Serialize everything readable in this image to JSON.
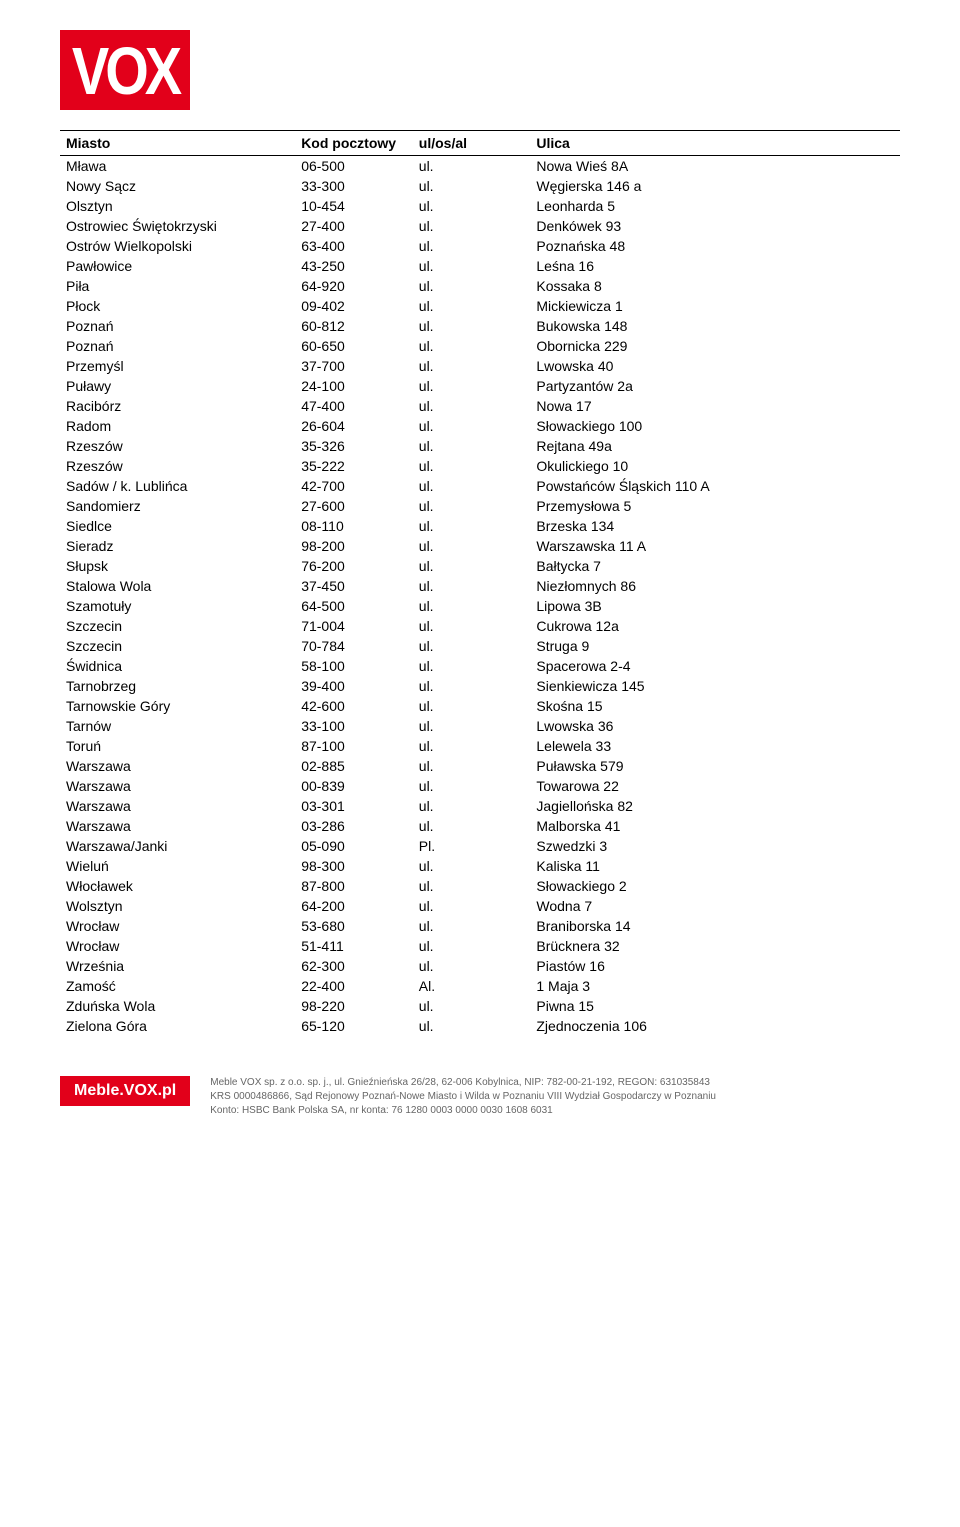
{
  "logo": {
    "text": "VOX"
  },
  "table": {
    "columns": [
      "Miasto",
      "Kod pocztowy",
      "ul/os/al",
      "Ulica"
    ],
    "rows": [
      [
        "Mława",
        "06-500",
        "ul.",
        "Nowa Wieś 8A"
      ],
      [
        "Nowy Sącz",
        "33-300",
        "ul.",
        "Węgierska 146 a"
      ],
      [
        "Olsztyn",
        "10-454",
        "ul.",
        "Leonharda 5"
      ],
      [
        "Ostrowiec Świętokrzyski",
        "27-400",
        "ul.",
        "Denkówek 93"
      ],
      [
        "Ostrów Wielkopolski",
        "63-400",
        "ul.",
        "Poznańska 48"
      ],
      [
        "Pawłowice",
        "43-250",
        "ul.",
        "Leśna 16"
      ],
      [
        "Piła",
        "64-920",
        "ul.",
        "Kossaka 8"
      ],
      [
        "Płock",
        "09-402",
        "ul.",
        "Mickiewicza 1"
      ],
      [
        "Poznań",
        "60-812",
        "ul.",
        "Bukowska 148"
      ],
      [
        "Poznań",
        "60-650",
        "ul.",
        "Obornicka 229"
      ],
      [
        "Przemyśl",
        "37-700",
        "ul.",
        "Lwowska 40"
      ],
      [
        "Puławy",
        "24-100",
        "ul.",
        "Partyzantów 2a"
      ],
      [
        "Racibórz",
        "47-400",
        "ul.",
        "Nowa 17"
      ],
      [
        "Radom",
        "26-604",
        "ul.",
        "Słowackiego 100"
      ],
      [
        "Rzeszów",
        "35-326",
        "ul.",
        "Rejtana 49a"
      ],
      [
        "Rzeszów",
        "35-222",
        "ul.",
        "Okulickiego 10"
      ],
      [
        "Sadów / k. Lublińca",
        "42-700",
        "ul.",
        "Powstańców Śląskich 110 A"
      ],
      [
        "Sandomierz",
        "27-600",
        "ul.",
        "Przemysłowa 5"
      ],
      [
        "Siedlce",
        "08-110",
        "ul.",
        "Brzeska 134"
      ],
      [
        "Sieradz",
        "98-200",
        "ul.",
        "Warszawska 11 A"
      ],
      [
        "Słupsk",
        "76-200",
        "ul.",
        "Bałtycka 7"
      ],
      [
        "Stalowa Wola",
        "37-450",
        "ul.",
        "Niezłomnych 86"
      ],
      [
        "Szamotuły",
        "64-500",
        "ul.",
        "Lipowa 3B"
      ],
      [
        "Szczecin",
        "71-004",
        "ul.",
        "Cukrowa 12a"
      ],
      [
        "Szczecin",
        "70-784",
        "ul.",
        "Struga 9"
      ],
      [
        "Świdnica",
        "58-100",
        "ul.",
        "Spacerowa 2-4"
      ],
      [
        "Tarnobrzeg",
        "39-400",
        "ul.",
        "Sienkiewicza 145"
      ],
      [
        "Tarnowskie Góry",
        "42-600",
        "ul.",
        "Skośna 15"
      ],
      [
        "Tarnów",
        "33-100",
        "ul.",
        "Lwowska 36"
      ],
      [
        "Toruń",
        "87-100",
        "ul.",
        "Lelewela 33"
      ],
      [
        "Warszawa",
        "02-885",
        "ul.",
        "Puławska 579"
      ],
      [
        "Warszawa",
        "00-839",
        "ul.",
        "Towarowa 22"
      ],
      [
        "Warszawa",
        "03-301",
        "ul.",
        "Jagiellońska 82"
      ],
      [
        "Warszawa",
        "03-286",
        "ul.",
        "Malborska 41"
      ],
      [
        "Warszawa/Janki",
        "05-090",
        "Pl.",
        "Szwedzki 3"
      ],
      [
        "Wieluń",
        "98-300",
        "ul.",
        "Kaliska 11"
      ],
      [
        "Włocławek",
        "87-800",
        "ul.",
        "Słowackiego 2"
      ],
      [
        "Wolsztyn",
        "64-200",
        "ul.",
        "Wodna 7"
      ],
      [
        "Wrocław",
        "53-680",
        "ul.",
        "Braniborska 14"
      ],
      [
        "Wrocław",
        "51-411",
        "ul.",
        "Brücknera 32"
      ],
      [
        "Września",
        "62-300",
        "ul.",
        "Piastów 16"
      ],
      [
        "Zamość",
        "22-400",
        "Al.",
        "1 Maja 3"
      ],
      [
        "Zduńska Wola",
        "98-220",
        "ul.",
        "Piwna 15"
      ],
      [
        "Zielona Góra",
        "65-120",
        "ul.",
        "Zjednoczenia 106"
      ]
    ]
  },
  "footer": {
    "logo": "Meble.VOX.pl",
    "line1": "Meble VOX sp. z o.o. sp. j., ul. Gnieźnieńska 26/28, 62-006 Kobylnica, NIP: 782-00-21-192, REGON: 631035843",
    "line2": "KRS 0000486866, Sąd Rejonowy Poznań-Nowe Miasto i Wilda w Poznaniu VIII Wydział Gospodarczy w Poznaniu",
    "line3": "Konto: HSBC Bank Polska SA, nr konta: 76 1280 0003 0000 0030 1608 6031"
  }
}
